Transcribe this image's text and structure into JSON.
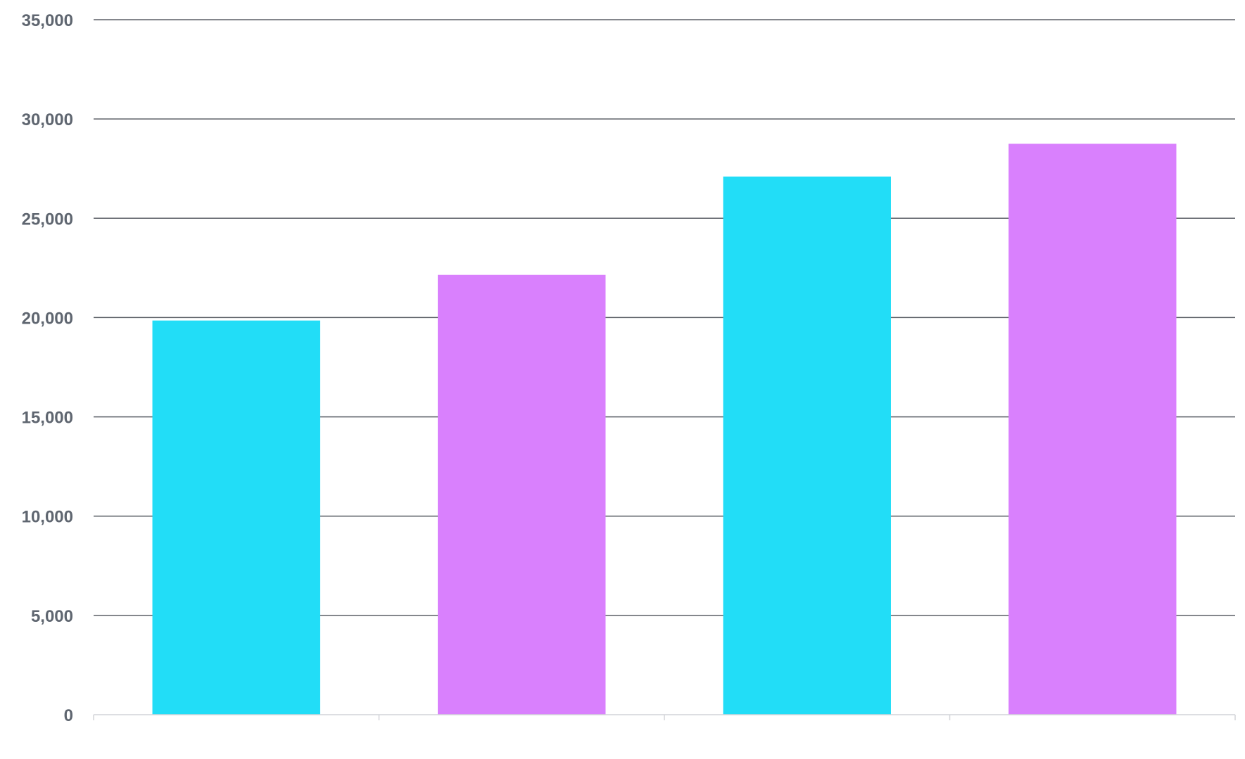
{
  "chart_data": {
    "type": "bar",
    "categories": [
      "",
      "",
      "",
      ""
    ],
    "values": [
      19850,
      22150,
      27100,
      28750
    ],
    "colors": [
      "#22ddf7",
      "#d980fd",
      "#22ddf7",
      "#d980fd"
    ],
    "ylim": [
      0,
      35000
    ],
    "yticks": [
      0,
      5000,
      10000,
      15000,
      20000,
      25000,
      30000,
      35000
    ],
    "ytick_labels": [
      "0",
      "5,000",
      "10,000",
      "15,000",
      "20,000",
      "25,000",
      "30,000",
      "35,000"
    ],
    "grid": true,
    "title": "",
    "xlabel": "",
    "ylabel": ""
  }
}
